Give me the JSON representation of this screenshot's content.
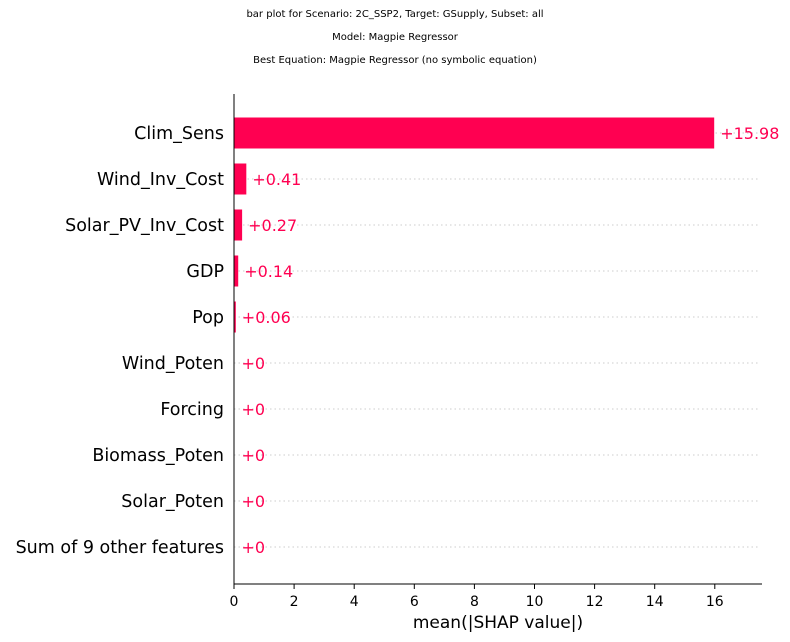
{
  "title_lines": [
    "bar plot for Scenario: 2C_SSP2, Target: GSupply, Subset: all",
    "Model: Magpie Regressor",
    "Best Equation: Magpie Regressor (no symbolic equation)"
  ],
  "colors": {
    "bar": "#ff0051",
    "label": "#ff0051",
    "axis": "#000000",
    "grid": "#cccccc"
  },
  "chart_data": {
    "type": "bar",
    "orientation": "horizontal",
    "categories": [
      "Clim_Sens",
      "Wind_Inv_Cost",
      "Solar_PV_Inv_Cost",
      "GDP",
      "Pop",
      "Wind_Poten",
      "Forcing",
      "Biomass_Poten",
      "Solar_Poten",
      "Sum of 9 other features"
    ],
    "values": [
      15.98,
      0.41,
      0.27,
      0.14,
      0.06,
      0,
      0,
      0,
      0,
      0
    ],
    "value_labels": [
      "+15.98",
      "+0.41",
      "+0.27",
      "+0.14",
      "+0.06",
      "+0",
      "+0",
      "+0",
      "+0",
      "+0"
    ],
    "xlabel": "mean(|SHAP value|)",
    "xlim": [
      0,
      17.6
    ],
    "xticks": [
      "0",
      "2",
      "4",
      "6",
      "8",
      "10",
      "12",
      "14",
      "16"
    ],
    "grid": "dotted horizontal row lines"
  }
}
